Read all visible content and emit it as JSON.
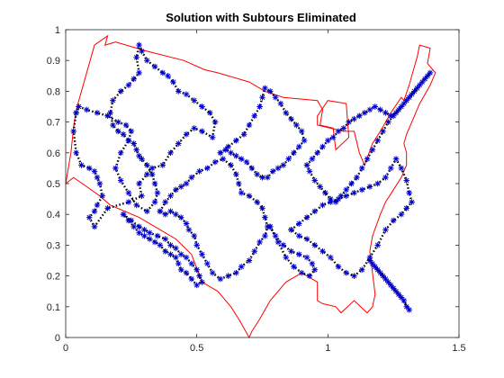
{
  "chart_data": {
    "type": "line",
    "title": "Solution with Subtours Eliminated",
    "xlabel": "",
    "ylabel": "",
    "xlim": [
      0,
      1.5
    ],
    "ylim": [
      0,
      1
    ],
    "xticks": [
      0,
      0.5,
      1,
      1.5
    ],
    "xtick_labels": [
      "0",
      "0.5",
      "1",
      "1.5"
    ],
    "yticks": [
      0,
      0.1,
      0.2,
      0.3,
      0.4,
      0.5,
      0.6,
      0.7,
      0.8,
      0.9,
      1
    ],
    "ytick_labels": [
      "0",
      "0.1",
      "0.2",
      "0.3",
      "0.4",
      "0.5",
      "0.6",
      "0.7",
      "0.8",
      "0.9",
      "1"
    ],
    "grid": false,
    "legend": "none",
    "colors": {
      "boundary": "#ff0000",
      "tour": "#000000",
      "stops": "#0000cc",
      "axes": "#262626"
    },
    "series": [
      {
        "kind": "boundary",
        "style": "solid red line",
        "x": [
          0.04,
          0.11,
          0.16,
          0.15,
          0.19,
          0.31,
          0.45,
          0.53,
          0.58,
          0.7,
          0.76,
          0.83,
          0.96,
          0.98,
          0.97,
          1.02,
          1.03,
          1.08,
          1.07,
          1.0,
          0.96,
          0.96,
          1.06,
          1.1,
          1.12,
          1.14,
          1.17,
          1.2,
          1.24,
          1.28,
          1.29,
          1.31,
          1.34,
          1.35,
          1.39,
          1.38,
          1.41,
          1.39,
          1.35,
          1.32,
          1.3,
          1.29,
          1.3,
          1.3,
          1.28,
          1.25,
          1.22,
          1.2,
          1.17,
          1.16,
          1.17,
          1.18,
          1.17,
          1.15,
          1.1,
          1.05,
          1.03,
          0.98,
          0.96,
          0.96,
          0.9,
          0.84,
          0.78,
          0.74,
          0.71,
          0.7,
          0.66,
          0.63,
          0.58,
          0.52,
          0.48,
          0.42,
          0.28,
          0.17,
          0.13,
          0.08,
          0.03,
          0.0,
          0.02,
          0.03,
          0.04
        ],
        "y": [
          0.74,
          0.95,
          0.98,
          0.95,
          0.96,
          0.93,
          0.9,
          0.87,
          0.86,
          0.83,
          0.8,
          0.78,
          0.77,
          0.74,
          0.69,
          0.68,
          0.61,
          0.65,
          0.76,
          0.77,
          0.72,
          0.69,
          0.67,
          0.67,
          0.6,
          0.56,
          0.63,
          0.67,
          0.73,
          0.78,
          0.77,
          0.82,
          0.91,
          0.95,
          0.94,
          0.89,
          0.86,
          0.82,
          0.76,
          0.7,
          0.66,
          0.63,
          0.6,
          0.56,
          0.52,
          0.48,
          0.44,
          0.4,
          0.33,
          0.28,
          0.21,
          0.14,
          0.1,
          0.08,
          0.12,
          0.08,
          0.1,
          0.11,
          0.12,
          0.18,
          0.21,
          0.18,
          0.12,
          0.06,
          0.02,
          0.0,
          0.06,
          0.1,
          0.15,
          0.18,
          0.27,
          0.32,
          0.39,
          0.43,
          0.46,
          0.49,
          0.52,
          0.5,
          0.6,
          0.68,
          0.74
        ]
      },
      {
        "kind": "tour",
        "style": "dotted black line with blue asterisk markers",
        "x": [
          0.04,
          0.03,
          0.04,
          0.06,
          0.09,
          0.11,
          0.12,
          0.13,
          0.14,
          0.12,
          0.11,
          0.09,
          0.11,
          0.16,
          0.24,
          0.29,
          0.28,
          0.31,
          0.33,
          0.37,
          0.4,
          0.43,
          0.46,
          0.49,
          0.52,
          0.56,
          0.57,
          0.55,
          0.52,
          0.49,
          0.46,
          0.43,
          0.41,
          0.39,
          0.37,
          0.34,
          0.31,
          0.29,
          0.28,
          0.27,
          0.28,
          0.26,
          0.24,
          0.21,
          0.18,
          0.17,
          0.18,
          0.2,
          0.22,
          0.24,
          0.26,
          0.27,
          0.28,
          0.29,
          0.31,
          0.33,
          0.34,
          0.35,
          0.34,
          0.31,
          0.27,
          0.24,
          0.21,
          0.19,
          0.21,
          0.24,
          0.25,
          0.23,
          0.2,
          0.16,
          0.12,
          0.08,
          0.05,
          0.04
        ],
        "y": [
          0.73,
          0.67,
          0.6,
          0.56,
          0.55,
          0.54,
          0.52,
          0.5,
          0.46,
          0.43,
          0.41,
          0.39,
          0.36,
          0.42,
          0.44,
          0.46,
          0.5,
          0.53,
          0.55,
          0.56,
          0.6,
          0.63,
          0.66,
          0.68,
          0.67,
          0.65,
          0.7,
          0.73,
          0.75,
          0.77,
          0.79,
          0.8,
          0.83,
          0.85,
          0.86,
          0.88,
          0.9,
          0.93,
          0.95,
          0.91,
          0.86,
          0.84,
          0.82,
          0.8,
          0.77,
          0.73,
          0.69,
          0.67,
          0.66,
          0.64,
          0.63,
          0.61,
          0.59,
          0.58,
          0.56,
          0.53,
          0.5,
          0.47,
          0.44,
          0.41,
          0.43,
          0.47,
          0.51,
          0.55,
          0.6,
          0.64,
          0.67,
          0.69,
          0.7,
          0.72,
          0.73,
          0.74,
          0.75,
          0.73
        ]
      },
      {
        "kind": "tour",
        "style": "dotted black line with blue asterisk markers",
        "x": [
          0.36,
          0.38,
          0.4,
          0.42,
          0.44,
          0.46,
          0.48,
          0.51,
          0.54,
          0.57,
          0.6,
          0.63,
          0.65,
          0.66,
          0.67,
          0.7,
          0.73,
          0.75,
          0.76,
          0.77,
          0.76,
          0.74,
          0.72,
          0.7,
          0.67,
          0.65,
          0.62,
          0.59,
          0.56,
          0.54,
          0.52,
          0.5,
          0.49,
          0.47,
          0.46,
          0.44,
          0.42,
          0.4,
          0.38,
          0.36
        ],
        "y": [
          0.41,
          0.44,
          0.46,
          0.48,
          0.49,
          0.5,
          0.52,
          0.54,
          0.55,
          0.57,
          0.58,
          0.56,
          0.53,
          0.5,
          0.47,
          0.46,
          0.44,
          0.42,
          0.39,
          0.36,
          0.33,
          0.31,
          0.28,
          0.25,
          0.23,
          0.21,
          0.2,
          0.19,
          0.21,
          0.24,
          0.27,
          0.3,
          0.33,
          0.35,
          0.37,
          0.39,
          0.4,
          0.41,
          0.4,
          0.41
        ]
      },
      {
        "kind": "tour",
        "style": "dotted black line with blue asterisk markers",
        "x": [
          0.22,
          0.25,
          0.28,
          0.3,
          0.32,
          0.35,
          0.38,
          0.4,
          0.42,
          0.44,
          0.46,
          0.48,
          0.5,
          0.51,
          0.52,
          0.5,
          0.48,
          0.46,
          0.44,
          0.43,
          0.42,
          0.4,
          0.38,
          0.36,
          0.34,
          0.32,
          0.3,
          0.28,
          0.26,
          0.24,
          0.22
        ],
        "y": [
          0.4,
          0.38,
          0.36,
          0.35,
          0.34,
          0.33,
          0.32,
          0.3,
          0.29,
          0.27,
          0.26,
          0.24,
          0.22,
          0.2,
          0.18,
          0.17,
          0.19,
          0.21,
          0.22,
          0.24,
          0.26,
          0.27,
          0.28,
          0.3,
          0.31,
          0.32,
          0.33,
          0.34,
          0.36,
          0.38,
          0.4
        ]
      },
      {
        "kind": "tour",
        "style": "dotted black line with blue asterisk markers",
        "x": [
          0.59,
          0.62,
          0.65,
          0.68,
          0.7,
          0.72,
          0.74,
          0.75,
          0.76,
          0.78,
          0.8,
          0.82,
          0.84,
          0.86,
          0.88,
          0.9,
          0.91,
          0.89,
          0.87,
          0.85,
          0.83,
          0.81,
          0.79,
          0.77,
          0.75,
          0.73,
          0.71,
          0.69,
          0.67,
          0.65,
          0.63,
          0.61,
          0.59
        ],
        "y": [
          0.6,
          0.62,
          0.64,
          0.66,
          0.69,
          0.72,
          0.75,
          0.78,
          0.81,
          0.8,
          0.78,
          0.76,
          0.73,
          0.71,
          0.69,
          0.67,
          0.64,
          0.62,
          0.6,
          0.58,
          0.56,
          0.55,
          0.54,
          0.52,
          0.52,
          0.53,
          0.55,
          0.57,
          0.58,
          0.59,
          0.6,
          0.61,
          0.6
        ]
      },
      {
        "kind": "tour",
        "style": "dotted black line with blue asterisk markers",
        "x": [
          0.92,
          0.94,
          0.96,
          0.98,
          1.0,
          1.02,
          1.04,
          1.06,
          1.08,
          1.1,
          1.12,
          1.14,
          1.16,
          1.18,
          1.2,
          1.22,
          1.24,
          1.26,
          1.28,
          1.3,
          1.32,
          1.34,
          1.36,
          1.38,
          1.39,
          1.37,
          1.35,
          1.33,
          1.31,
          1.29,
          1.27,
          1.25,
          1.23,
          1.21,
          1.19,
          1.17,
          1.15,
          1.13,
          1.11,
          1.09,
          1.07,
          1.05,
          1.03,
          1.01,
          0.99,
          0.97,
          0.95,
          0.93,
          0.92
        ],
        "y": [
          0.56,
          0.58,
          0.6,
          0.62,
          0.64,
          0.65,
          0.67,
          0.68,
          0.7,
          0.71,
          0.72,
          0.73,
          0.74,
          0.75,
          0.74,
          0.73,
          0.72,
          0.73,
          0.75,
          0.77,
          0.79,
          0.81,
          0.83,
          0.85,
          0.86,
          0.84,
          0.82,
          0.8,
          0.78,
          0.76,
          0.74,
          0.72,
          0.7,
          0.67,
          0.64,
          0.61,
          0.58,
          0.55,
          0.52,
          0.5,
          0.48,
          0.46,
          0.44,
          0.45,
          0.47,
          0.49,
          0.51,
          0.54,
          0.56
        ]
      },
      {
        "kind": "tour",
        "style": "dotted black line with blue asterisk markers",
        "x": [
          0.86,
          0.89,
          0.92,
          0.95,
          0.98,
          1.01,
          1.04,
          1.07,
          1.1,
          1.13,
          1.16,
          1.19,
          1.22,
          1.24,
          1.26,
          1.28,
          1.3,
          1.31,
          1.32,
          1.3,
          1.28,
          1.25,
          1.22,
          1.19,
          1.16,
          1.13,
          1.1,
          1.07,
          1.04,
          1.01,
          0.98,
          0.95,
          0.92,
          0.89,
          0.86
        ],
        "y": [
          0.35,
          0.37,
          0.39,
          0.41,
          0.43,
          0.44,
          0.45,
          0.46,
          0.47,
          0.48,
          0.49,
          0.5,
          0.52,
          0.55,
          0.58,
          0.55,
          0.51,
          0.47,
          0.44,
          0.42,
          0.4,
          0.38,
          0.35,
          0.3,
          0.26,
          0.22,
          0.2,
          0.21,
          0.23,
          0.26,
          0.28,
          0.3,
          0.32,
          0.33,
          0.35
        ]
      },
      {
        "kind": "tour",
        "style": "dotted black line with blue asterisk markers",
        "x": [
          1.16,
          1.18,
          1.2,
          1.22,
          1.24,
          1.26,
          1.28,
          1.3,
          1.31,
          1.29,
          1.27,
          1.25,
          1.23,
          1.21,
          1.19,
          1.17,
          1.16
        ],
        "y": [
          0.25,
          0.23,
          0.21,
          0.19,
          0.17,
          0.15,
          0.13,
          0.1,
          0.09,
          0.12,
          0.14,
          0.16,
          0.18,
          0.2,
          0.22,
          0.24,
          0.25
        ]
      },
      {
        "kind": "tour",
        "style": "dotted black line with blue asterisk markers",
        "x": [
          0.78,
          0.8,
          0.83,
          0.86,
          0.89,
          0.92,
          0.94,
          0.95,
          0.93,
          0.9,
          0.87,
          0.84,
          0.81,
          0.78
        ],
        "y": [
          0.36,
          0.33,
          0.3,
          0.28,
          0.27,
          0.26,
          0.24,
          0.22,
          0.2,
          0.21,
          0.23,
          0.26,
          0.31,
          0.36
        ]
      }
    ]
  }
}
